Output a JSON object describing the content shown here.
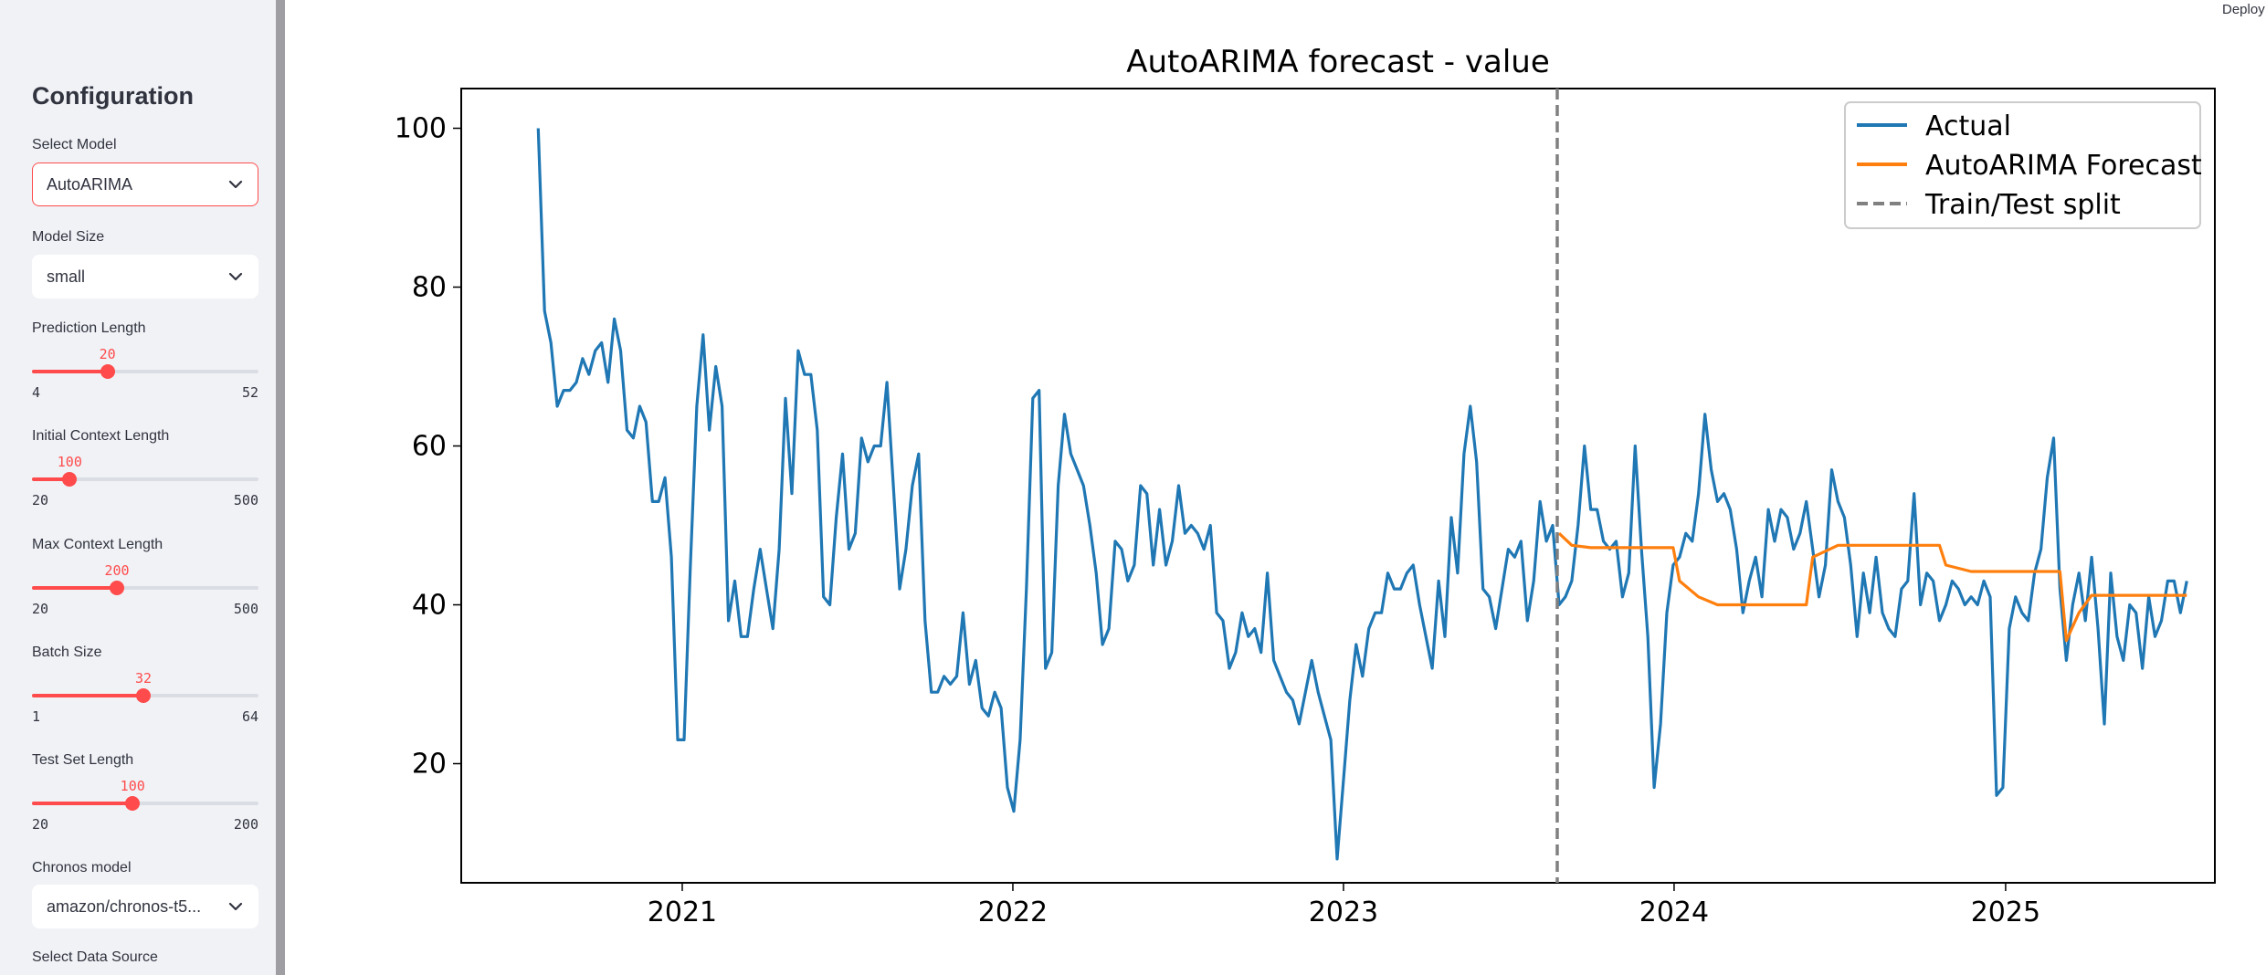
{
  "topbar": {
    "deploy_label": "Deploy"
  },
  "sidebar": {
    "title": "Configuration",
    "select_model": {
      "label": "Select Model",
      "value": "AutoARIMA"
    },
    "model_size": {
      "label": "Model Size",
      "value": "small"
    },
    "prediction_length": {
      "label": "Prediction Length",
      "value": 20,
      "min": 4,
      "max": 52
    },
    "initial_context_length": {
      "label": "Initial Context Length",
      "value": 100,
      "min": 20,
      "max": 500
    },
    "max_context_length": {
      "label": "Max Context Length",
      "value": 200,
      "min": 20,
      "max": 500
    },
    "batch_size": {
      "label": "Batch Size",
      "value": 32,
      "min": 1,
      "max": 64
    },
    "test_set_length": {
      "label": "Test Set Length",
      "value": 100,
      "min": 20,
      "max": 200
    },
    "chronos_model": {
      "label": "Chronos model",
      "value": "amazon/chronos-t5..."
    },
    "data_source": {
      "label": "Select Data Source"
    }
  },
  "chart_data": {
    "type": "line",
    "title": "AutoARIMA forecast - value",
    "xlabel": "",
    "ylabel": "",
    "x_ticks": [
      "2021",
      "2022",
      "2023",
      "2024",
      "2025"
    ],
    "y_ticks": [
      20,
      40,
      60,
      80,
      100
    ],
    "xlim": [
      "2020-05-02",
      "2025-08-20"
    ],
    "ylim": [
      5,
      105
    ],
    "legend_position": "top-right",
    "split_date": "2023-08-25",
    "split_label": "Train/Test split",
    "series": [
      {
        "name": "Actual",
        "color": "#1f77b4",
        "start_date": "2020-07-26",
        "freq": "weekly",
        "values": [
          100,
          77,
          73,
          65,
          67,
          67,
          68,
          71,
          69,
          72,
          73,
          68,
          76,
          72,
          62,
          61,
          65,
          63,
          53,
          53,
          56,
          46,
          23,
          23,
          45,
          65,
          74,
          62,
          70,
          65,
          38,
          43,
          36,
          36,
          42,
          47,
          42,
          37,
          47,
          66,
          54,
          72,
          69,
          69,
          62,
          41,
          40,
          51,
          59,
          47,
          49,
          61,
          58,
          60,
          60,
          68,
          55,
          42,
          47,
          55,
          59,
          38,
          29,
          29,
          31,
          30,
          31,
          39,
          30,
          33,
          27,
          26,
          29,
          27,
          17,
          14,
          23,
          42,
          66,
          67,
          32,
          34,
          55,
          64,
          59,
          57,
          55,
          50,
          44,
          35,
          37,
          48,
          47,
          43,
          45,
          55,
          54,
          45,
          52,
          45,
          48,
          55,
          49,
          50,
          49,
          47,
          50,
          39,
          38,
          32,
          34,
          39,
          36,
          37,
          34,
          44,
          33,
          31,
          29,
          28,
          25,
          29,
          33,
          29,
          26,
          23,
          8,
          18,
          28,
          35,
          31,
          37,
          39,
          39,
          44,
          42,
          42,
          44,
          45,
          40,
          36,
          32,
          43,
          36,
          51,
          44,
          59,
          65,
          58,
          42,
          41,
          37,
          42,
          47,
          46,
          48,
          38,
          43,
          53,
          48,
          50,
          40,
          41,
          43,
          50,
          60,
          52,
          52,
          48,
          47,
          48,
          41,
          44,
          60,
          47,
          36,
          17,
          25,
          39,
          45,
          46,
          49,
          48,
          54,
          64,
          57,
          53,
          54,
          52,
          47,
          39,
          43,
          46,
          41,
          52,
          48,
          52,
          51,
          47,
          49,
          53,
          47,
          41,
          45,
          57,
          53,
          51,
          45,
          36,
          44,
          39,
          46,
          39,
          37,
          36,
          42,
          43,
          54,
          40,
          44,
          43,
          38,
          40,
          43,
          42,
          40,
          41,
          40,
          43,
          41,
          16,
          17,
          37,
          41,
          39,
          38,
          44,
          47,
          56,
          61,
          42,
          33,
          40,
          44,
          38,
          46,
          37,
          25,
          44,
          36,
          33,
          40,
          39,
          32,
          41,
          36,
          38,
          43,
          43,
          39,
          43
        ]
      },
      {
        "name": "AutoARIMA Forecast",
        "color": "#ff7f0e",
        "points": [
          [
            "2023-08-27",
            49
          ],
          [
            "2023-09-10",
            47.5
          ],
          [
            "2023-10-01",
            47.2
          ],
          [
            "2023-12-31",
            47.2
          ],
          [
            "2024-01-07",
            43
          ],
          [
            "2024-01-28",
            41
          ],
          [
            "2024-02-18",
            40
          ],
          [
            "2024-05-26",
            40
          ],
          [
            "2024-06-02",
            46
          ],
          [
            "2024-06-30",
            47.5
          ],
          [
            "2024-10-20",
            47.5
          ],
          [
            "2024-10-27",
            45
          ],
          [
            "2024-11-24",
            44.2
          ],
          [
            "2025-03-02",
            44.2
          ],
          [
            "2025-03-09",
            35.5
          ],
          [
            "2025-03-23",
            39
          ],
          [
            "2025-04-06",
            41.2
          ],
          [
            "2025-07-20",
            41.2
          ]
        ]
      }
    ]
  }
}
